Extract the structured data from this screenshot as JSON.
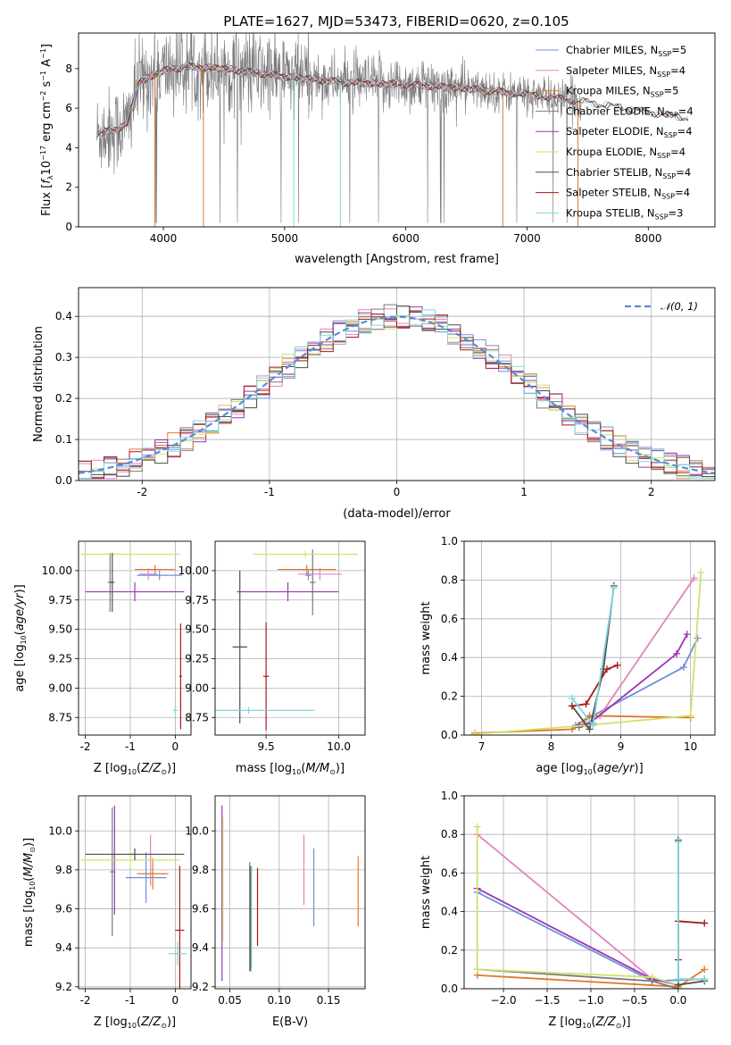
{
  "figure": {
    "title": "PLATE=1627, MJD=53473, FIBERID=0620, z=0.105"
  },
  "colors": {
    "Chabrier MILES": "#6f8fdb",
    "Salpeter MILES": "#e283c0",
    "Kroupa MILES": "#e1772a",
    "Chabrier ELODIE": "#7a7a7a",
    "Salpeter ELODIE": "#9b36b8",
    "Kroupa ELODIE": "#cde36b",
    "Chabrier STELIB": "#4d4d4d",
    "Salpeter STELIB": "#a51818",
    "Kroupa STELIB": "#7fd8dc",
    "gaussian": "#5b8bd6"
  },
  "chart_data": [
    {
      "id": "spectrum",
      "type": "line",
      "xlabel": "wavelength [Angstrom, rest frame]",
      "ylabel": "Flux [f_λ10^{-17} erg cm^{-2} s^{-1} A^{-1}]",
      "xlim": [
        3300,
        8550
      ],
      "ylim": [
        0,
        9.8
      ],
      "xticks": [
        4000,
        5000,
        6000,
        7000,
        8000
      ],
      "yticks": [
        0,
        2,
        4,
        6,
        8
      ],
      "legend_position": "upper-right",
      "legend": [
        {
          "model": "Chabrier MILES",
          "nssp": "5"
        },
        {
          "model": "Salpeter MILES",
          "nssp": "4"
        },
        {
          "model": "Kroupa MILES",
          "nssp": "5"
        },
        {
          "model": "Chabrier ELODIE",
          "nssp": "4"
        },
        {
          "model": "Salpeter ELODIE",
          "nssp": "4"
        },
        {
          "model": "Kroupa ELODIE",
          "nssp": "4"
        },
        {
          "model": "Chabrier STELIB",
          "nssp": "4"
        },
        {
          "model": "Salpeter STELIB",
          "nssp": "4"
        },
        {
          "model": "Kroupa STELIB",
          "nssp": "3"
        }
      ],
      "model_continuum": {
        "x": [
          3450,
          3600,
          3700,
          3800,
          3900,
          4000,
          4200,
          4500,
          5000,
          5500,
          6000,
          6500,
          7000,
          7500,
          8000,
          8330
        ],
        "y": [
          4.7,
          4.9,
          5.2,
          7.3,
          7.6,
          7.9,
          8.1,
          8.0,
          7.6,
          7.3,
          7.2,
          7.0,
          6.7,
          6.3,
          5.8,
          5.5
        ]
      },
      "model_ranges": {
        "MILES": [
          3450,
          7420
        ],
        "ELODIE": [
          3450,
          6850
        ],
        "STELIB": [
          3450,
          8330
        ]
      }
    },
    {
      "id": "residuals",
      "type": "histogram",
      "xlabel": "(data-model)/error",
      "ylabel": "Normed distribution",
      "xlim": [
        -2.5,
        2.5
      ],
      "ylim": [
        0,
        0.47
      ],
      "xticks": [
        -2,
        -1,
        0,
        1,
        2
      ],
      "yticks": [
        0.0,
        0.1,
        0.2,
        0.3,
        0.4
      ],
      "legend": "𝒩(0, 1)",
      "bin_width": 0.1,
      "grid": true
    },
    {
      "id": "age-vs-Z",
      "type": "scatter-errorbar",
      "xlabel": "Z [log10(Z/Z⊙)]",
      "ylabel": "age [log10(age/yr)]",
      "xlim": [
        -2.15,
        0.35
      ],
      "ylim": [
        8.6,
        10.25
      ],
      "xticks": [
        -2,
        -1,
        0
      ],
      "yticks": [
        8.75,
        9.0,
        9.25,
        9.5,
        9.75,
        10.0
      ],
      "points": [
        {
          "model": "Chabrier MILES",
          "x": -0.35,
          "xerr": 0.5,
          "y": 9.96,
          "yerr": 0.04
        },
        {
          "model": "Salpeter MILES",
          "x": -0.6,
          "xerr": 0.2,
          "y": 9.97,
          "yerr": 0.05
        },
        {
          "model": "Kroupa MILES",
          "x": -0.45,
          "xerr": 0.45,
          "y": 10.01,
          "yerr": 0.04
        },
        {
          "model": "Chabrier ELODIE",
          "x": -1.45,
          "xerr": 0.05,
          "y": 9.9,
          "yerr": 0.25
        },
        {
          "model": "Salpeter ELODIE",
          "x": -0.9,
          "xerr": 1.1,
          "y": 9.82,
          "yerr": 0.08
        },
        {
          "model": "Kroupa ELODIE",
          "x": -1.0,
          "xerr": 1.1,
          "y": 10.14,
          "yerr": 0.03
        },
        {
          "model": "Chabrier STELIB",
          "x": -1.4,
          "xerr": 0.05,
          "y": 9.9,
          "yerr": 0.25
        },
        {
          "model": "Salpeter STELIB",
          "x": 0.12,
          "xerr": 0.03,
          "y": 9.1,
          "yerr": 0.45
        },
        {
          "model": "Kroupa STELIB",
          "x": 0.0,
          "xerr": 0.05,
          "y": 8.81,
          "yerr": 0.03
        }
      ]
    },
    {
      "id": "age-vs-mass",
      "type": "scatter-errorbar",
      "xlabel": "mass [log10(M/M⊙)]",
      "ylabel": "",
      "xlim": [
        9.15,
        10.18
      ],
      "ylim": [
        8.6,
        10.25
      ],
      "xticks": [
        9.5,
        10.0
      ],
      "yticks": [
        8.75,
        9.0,
        9.25,
        9.5,
        9.75,
        10.0
      ],
      "points": [
        {
          "model": "Chabrier MILES",
          "x": 9.79,
          "xerr": 0.02,
          "y": 9.96,
          "yerr": 0.04
        },
        {
          "model": "Salpeter MILES",
          "x": 9.87,
          "xerr": 0.15,
          "y": 9.97,
          "yerr": 0.05
        },
        {
          "model": "Kroupa MILES",
          "x": 9.78,
          "xerr": 0.2,
          "y": 10.01,
          "yerr": 0.04
        },
        {
          "model": "Chabrier ELODIE",
          "x": 9.82,
          "xerr": 0.02,
          "y": 9.9,
          "yerr": 0.28
        },
        {
          "model": "Salpeter ELODIE",
          "x": 9.65,
          "xerr": 0.35,
          "y": 9.82,
          "yerr": 0.08
        },
        {
          "model": "Kroupa ELODIE",
          "x": 9.77,
          "xerr": 0.36,
          "y": 10.14,
          "yerr": 0.03
        },
        {
          "model": "Chabrier STELIB",
          "x": 9.32,
          "xerr": 0.05,
          "y": 9.35,
          "yerr": 0.65
        },
        {
          "model": "Salpeter STELIB",
          "x": 9.5,
          "xerr": 0.02,
          "y": 9.1,
          "yerr": 0.46
        },
        {
          "model": "Kroupa STELIB",
          "x": 9.38,
          "xerr": 0.45,
          "y": 8.81,
          "yerr": 0.03
        }
      ]
    },
    {
      "id": "weight-vs-age",
      "type": "line",
      "xlabel": "age [log10(age/yr)]",
      "ylabel": "mass weight",
      "xlim": [
        6.75,
        10.35
      ],
      "ylim": [
        0,
        1.0
      ],
      "xticks": [
        7,
        8,
        9,
        10
      ],
      "yticks": [
        0.0,
        0.2,
        0.4,
        0.6,
        0.8,
        1.0
      ],
      "series": [
        {
          "model": "Chabrier MILES",
          "x": [
            8.35,
            8.6,
            9.9,
            10.1
          ],
          "y": [
            0.05,
            0.1,
            0.35,
            0.5
          ]
        },
        {
          "model": "Salpeter MILES",
          "x": [
            8.5,
            8.7,
            10.05
          ],
          "y": [
            0.06,
            0.1,
            0.81
          ]
        },
        {
          "model": "Kroupa MILES",
          "x": [
            6.9,
            8.3,
            8.55,
            10.0
          ],
          "y": [
            0.01,
            0.03,
            0.1,
            0.09
          ]
        },
        {
          "model": "Chabrier ELODIE",
          "x": [
            8.4,
            8.6
          ],
          "y": [
            0.04,
            0.06
          ]
        },
        {
          "model": "Salpeter ELODIE",
          "x": [
            8.4,
            8.55,
            9.8,
            9.95
          ],
          "y": [
            0.05,
            0.06,
            0.42,
            0.52
          ]
        },
        {
          "model": "Kroupa ELODIE",
          "x": [
            6.9,
            8.5,
            10.0,
            10.15
          ],
          "y": [
            0.005,
            0.05,
            0.1,
            0.84
          ]
        },
        {
          "model": "Chabrier STELIB",
          "x": [
            8.3,
            8.55,
            8.75,
            8.9
          ],
          "y": [
            0.15,
            0.03,
            0.34,
            0.77
          ]
        },
        {
          "model": "Salpeter STELIB",
          "x": [
            8.3,
            8.5,
            8.8,
            8.95
          ],
          "y": [
            0.15,
            0.16,
            0.34,
            0.36
          ]
        },
        {
          "model": "Kroupa STELIB",
          "x": [
            8.3,
            8.6,
            8.9
          ],
          "y": [
            0.19,
            0.05,
            0.76
          ]
        }
      ]
    },
    {
      "id": "mass-vs-Z",
      "type": "scatter-errorbar",
      "xlabel": "Z [log10(Z/Z⊙)]",
      "ylabel": "mass [log10(M/M⊙)]",
      "xlim": [
        -2.15,
        0.35
      ],
      "ylim": [
        9.19,
        10.18
      ],
      "xticks": [
        -2,
        -1,
        0
      ],
      "yticks": [
        9.2,
        9.4,
        9.6,
        9.8,
        10.0
      ],
      "points": [
        {
          "model": "Chabrier MILES",
          "x": -0.65,
          "xerr": 0.45,
          "y": 9.76,
          "yerr": 0.13
        },
        {
          "model": "Salpeter MILES",
          "x": -0.55,
          "xerr": 0.05,
          "y": 9.85,
          "yerr": 0.13
        },
        {
          "model": "Kroupa MILES",
          "x": -0.5,
          "xerr": 0.35,
          "y": 9.78,
          "yerr": 0.08
        },
        {
          "model": "Chabrier ELODIE",
          "x": -1.4,
          "xerr": 0.05,
          "y": 9.79,
          "yerr": 0.33
        },
        {
          "model": "Salpeter ELODIE",
          "x": -1.35,
          "xerr": 0.05,
          "y": 9.85,
          "yerr": 0.28
        },
        {
          "model": "Kroupa ELODIE",
          "x": -1.0,
          "xerr": 1.1,
          "y": 9.85,
          "yerr": 0.04
        },
        {
          "model": "Chabrier STELIB",
          "x": -0.9,
          "xerr": 1.1,
          "y": 9.88,
          "yerr": 0.03
        },
        {
          "model": "Salpeter STELIB",
          "x": 0.1,
          "xerr": 0.1,
          "y": 9.49,
          "yerr": 0.33
        },
        {
          "model": "Kroupa STELIB",
          "x": 0.05,
          "xerr": 0.2,
          "y": 9.37,
          "yerr": 0.06
        }
      ]
    },
    {
      "id": "mass-vs-EBV",
      "type": "scatter-errorbar",
      "xlabel": "E(B-V)",
      "ylabel": "",
      "xlim": [
        0.035,
        0.187
      ],
      "ylim": [
        9.19,
        10.18
      ],
      "xticks": [
        0.05,
        0.1,
        0.15
      ],
      "yticks": [
        9.2,
        9.4,
        9.6,
        9.8,
        10.0
      ],
      "points": [
        {
          "model": "Chabrier MILES",
          "x": 0.135,
          "y": 9.71,
          "yerr": 0.2
        },
        {
          "model": "Salpeter MILES",
          "x": 0.125,
          "y": 9.8,
          "yerr": 0.18
        },
        {
          "model": "Kroupa MILES",
          "x": 0.18,
          "y": 9.69,
          "yerr": 0.18
        },
        {
          "model": "Chabrier ELODIE",
          "x": 0.07,
          "y": 9.56,
          "yerr": 0.28
        },
        {
          "model": "Salpeter ELODIE",
          "x": 0.042,
          "y": 9.68,
          "yerr": 0.45
        },
        {
          "model": "Kroupa ELODIE",
          "x": 0.043,
          "y": 9.75,
          "yerr": 0.32
        },
        {
          "model": "Chabrier STELIB",
          "x": 0.071,
          "y": 9.55,
          "yerr": 0.27
        },
        {
          "model": "Salpeter STELIB",
          "x": 0.078,
          "y": 9.61,
          "yerr": 0.2
        },
        {
          "model": "Kroupa STELIB",
          "x": 0.072,
          "y": 9.56,
          "yerr": 0.26
        }
      ]
    },
    {
      "id": "weight-vs-Z",
      "type": "line",
      "xlabel": "Z [log10(Z/Z⊙)]",
      "ylabel": "mass weight",
      "xlim": [
        -2.45,
        0.42
      ],
      "ylim": [
        0,
        1.0
      ],
      "xticks": [
        -2.0,
        -1.5,
        -1.0,
        -0.5,
        0.0
      ],
      "yticks": [
        0.0,
        0.2,
        0.4,
        0.6,
        0.8,
        1.0
      ],
      "series": [
        {
          "model": "Chabrier MILES",
          "x": [
            -2.3,
            -0.3,
            0.3
          ],
          "y": [
            0.5,
            0.04,
            0.05
          ]
        },
        {
          "model": "Salpeter MILES",
          "x": [
            -2.3,
            -0.3
          ],
          "y": [
            0.8,
            0.05
          ]
        },
        {
          "model": "Kroupa MILES",
          "x": [
            -2.3,
            0.0,
            0.3
          ],
          "y": [
            0.07,
            0.01,
            0.1
          ]
        },
        {
          "model": "Chabrier ELODIE",
          "x": [
            -2.3,
            -0.3,
            0.0
          ],
          "y": [
            0.1,
            0.04,
            0.0
          ]
        },
        {
          "model": "Salpeter ELODIE",
          "x": [
            -2.3,
            -0.3,
            0.0
          ],
          "y": [
            0.52,
            0.05,
            0.02
          ]
        },
        {
          "model": "Kroupa ELODIE",
          "x": [
            -2.3,
            -2.3,
            -0.3,
            0.0
          ],
          "y": [
            0.84,
            0.1,
            0.06,
            0.02
          ]
        },
        {
          "model": "Chabrier STELIB",
          "x": [
            0.0,
            0.0,
            0.3
          ],
          "y": [
            0.77,
            0.02,
            0.04
          ]
        },
        {
          "model": "Salpeter STELIB",
          "x": [
            0.0,
            0.0,
            0.3
          ],
          "y": [
            0.15,
            0.35,
            0.34
          ]
        },
        {
          "model": "Kroupa STELIB",
          "x": [
            0.0,
            0.0,
            0.3
          ],
          "y": [
            0.76,
            0.05,
            0.05
          ]
        }
      ]
    }
  ]
}
